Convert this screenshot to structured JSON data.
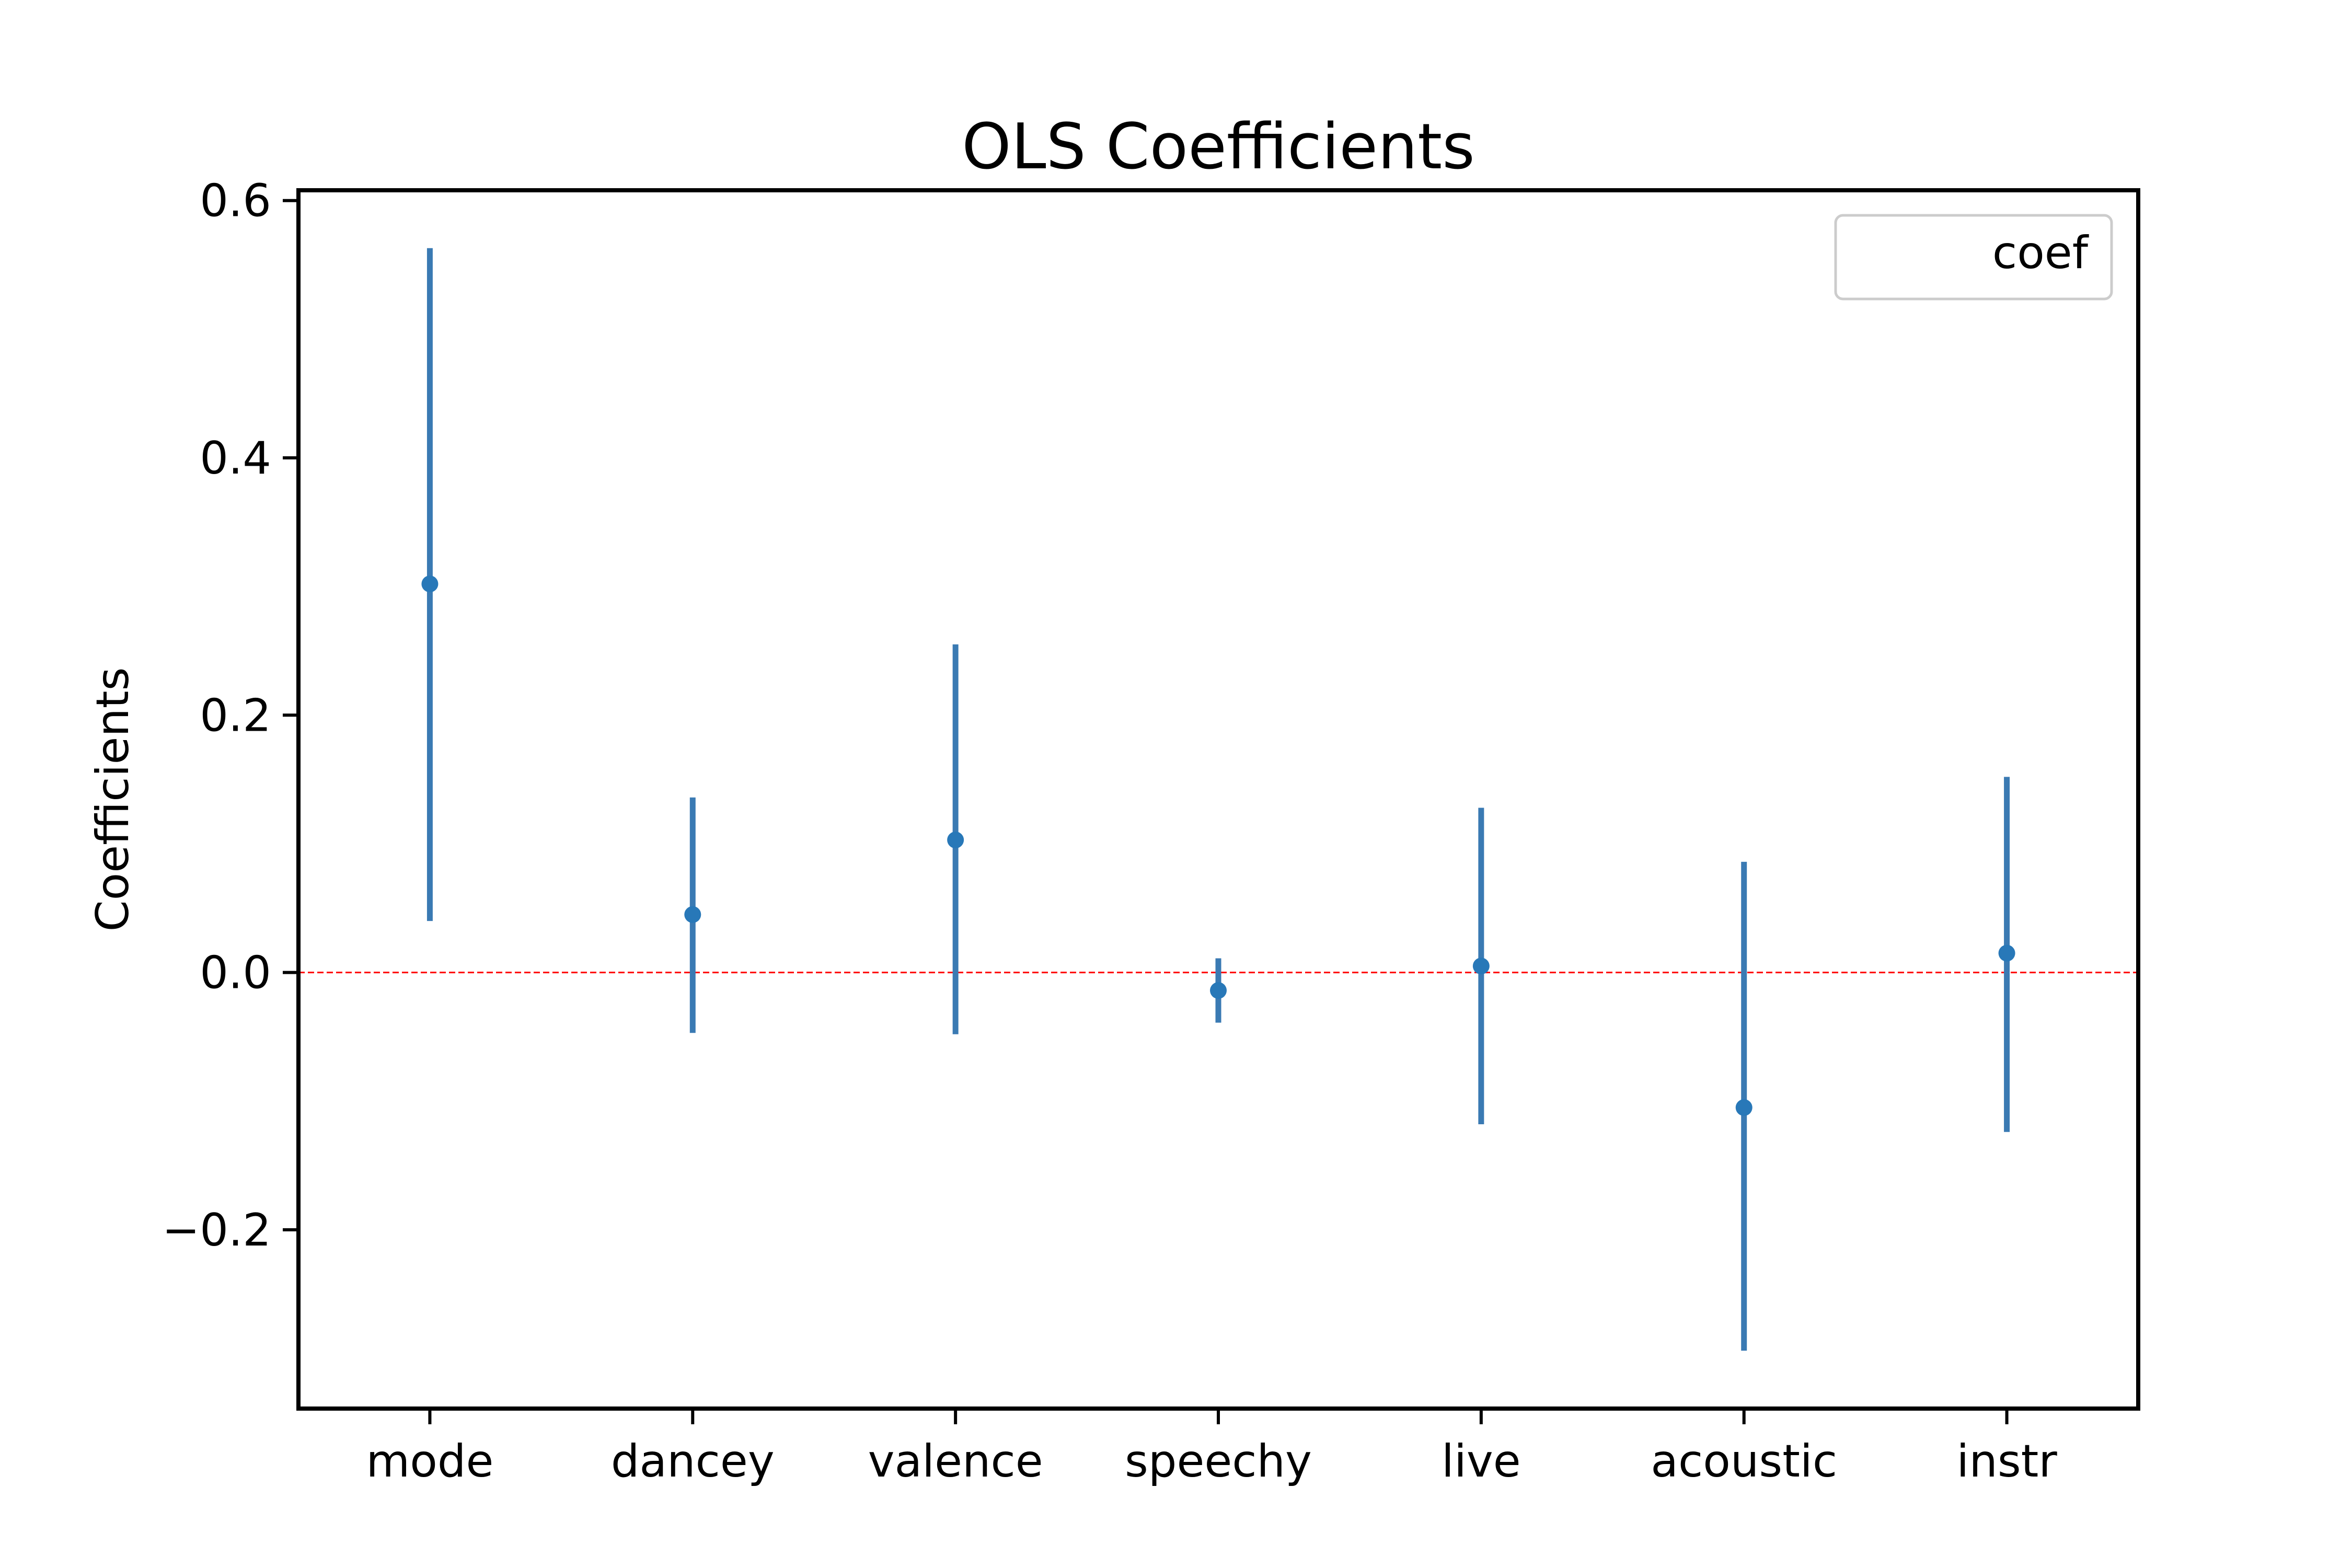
{
  "chart_data": {
    "type": "scatter",
    "title": "OLS Coefficients",
    "xlabel": "",
    "ylabel": "Coefficients",
    "categories": [
      "mode",
      "dancey",
      "valence",
      "speechy",
      "live",
      "acoustic",
      "instr"
    ],
    "series": [
      {
        "name": "coef",
        "values": [
          0.302,
          0.045,
          0.103,
          -0.014,
          0.005,
          -0.105,
          0.015
        ],
        "ci_lower": [
          0.04,
          -0.047,
          -0.048,
          -0.039,
          -0.118,
          -0.294,
          -0.124
        ],
        "ci_upper": [
          0.563,
          0.136,
          0.255,
          0.011,
          0.128,
          0.086,
          0.152
        ]
      }
    ],
    "ylim": [
      -0.339,
      0.608
    ],
    "yticks": [
      0.6,
      0.4,
      0.2,
      0.0,
      -0.2
    ],
    "ytick_labels": [
      "0.6",
      "0.4",
      "0.2",
      "0.0",
      "−0.2"
    ],
    "reference_line": {
      "y": 0.0,
      "style": "dashed",
      "color": "#ff0000"
    },
    "legend": {
      "position": "top-right",
      "entries": [
        "coef"
      ]
    },
    "grid": false,
    "colors": {
      "series": "#3a7ab3",
      "point": "#2878b8",
      "reference": "#ff0000",
      "axes": "#000000",
      "legend_border": "#cccccc"
    }
  }
}
